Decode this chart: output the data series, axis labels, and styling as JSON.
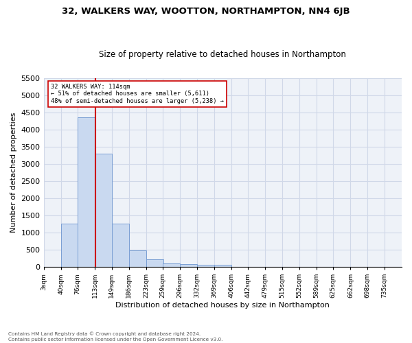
{
  "title": "32, WALKERS WAY, WOOTTON, NORTHAMPTON, NN4 6JB",
  "subtitle": "Size of property relative to detached houses in Northampton",
  "xlabel": "Distribution of detached houses by size in Northampton",
  "ylabel": "Number of detached properties",
  "footnote1": "Contains HM Land Registry data © Crown copyright and database right 2024.",
  "footnote2": "Contains public sector information licensed under the Open Government Licence v3.0.",
  "annotation_line1": "32 WALKERS WAY: 114sqm",
  "annotation_line2": "← 51% of detached houses are smaller (5,611)",
  "annotation_line3": "48% of semi-detached houses are larger (5,238) →",
  "bar_color": "#c9d9f0",
  "bar_edge_color": "#7a9fd4",
  "grid_color": "#d0d8e8",
  "background_color": "#eef2f8",
  "marker_line_color": "#cc0000",
  "marker_value": 114,
  "categories": [
    "3sqm",
    "40sqm",
    "76sqm",
    "113sqm",
    "149sqm",
    "186sqm",
    "223sqm",
    "259sqm",
    "296sqm",
    "332sqm",
    "369sqm",
    "406sqm",
    "442sqm",
    "479sqm",
    "515sqm",
    "552sqm",
    "589sqm",
    "625sqm",
    "662sqm",
    "698sqm",
    "735sqm"
  ],
  "bin_edges": [
    3,
    40,
    76,
    113,
    149,
    186,
    223,
    259,
    296,
    332,
    369,
    406,
    442,
    479,
    515,
    552,
    589,
    625,
    662,
    698,
    735
  ],
  "values": [
    0,
    1260,
    4350,
    3300,
    1265,
    480,
    215,
    105,
    75,
    60,
    60,
    0,
    0,
    0,
    0,
    0,
    0,
    0,
    0,
    0
  ],
  "ylim": [
    0,
    5500
  ],
  "yticks": [
    0,
    500,
    1000,
    1500,
    2000,
    2500,
    3000,
    3500,
    4000,
    4500,
    5000,
    5500
  ]
}
